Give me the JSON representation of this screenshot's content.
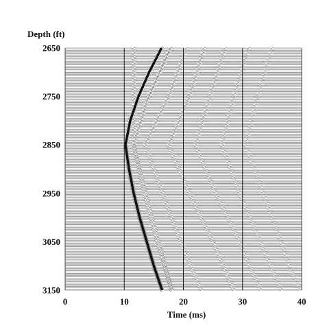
{
  "chart_data": {
    "type": "seismic-wiggle",
    "xlabel": "Time (ms)",
    "ylabel": "Depth (ft)",
    "xlim": [
      0,
      40
    ],
    "ylim": [
      2650,
      3150
    ],
    "y_inverted": true,
    "xticks": [
      0,
      10,
      20,
      30,
      40
    ],
    "xtick_labels": [
      "0",
      "10",
      "20",
      "30",
      "40"
    ],
    "yticks": [
      2650,
      2750,
      2850,
      2950,
      3050,
      3150
    ],
    "ytick_labels": [
      "2650",
      "2750",
      "2850",
      "2950",
      "3050",
      "3150"
    ],
    "vertical_grid": [
      10,
      20,
      30
    ],
    "trace_spacing_ft": 2.5,
    "colors": {
      "background": "#ffffff",
      "trace": "#111111",
      "grid": "#222222"
    },
    "events": [
      {
        "kind": "direct",
        "strength": 1.0,
        "points": [
          [
            2650,
            16.3
          ],
          [
            2700,
            14.2
          ],
          [
            2750,
            12.4
          ],
          [
            2800,
            11.0
          ],
          [
            2850,
            10.2
          ],
          [
            2900,
            10.8
          ],
          [
            2950,
            11.6
          ],
          [
            3000,
            12.6
          ],
          [
            3050,
            13.8
          ],
          [
            3100,
            15.0
          ],
          [
            3150,
            16.4
          ]
        ]
      },
      {
        "kind": "reflection",
        "strength": 0.5,
        "points": [
          [
            2650,
            17.8
          ],
          [
            2760,
            13.8
          ],
          [
            2850,
            11.6
          ],
          [
            2950,
            13.4
          ],
          [
            3050,
            15.6
          ],
          [
            3150,
            18.0
          ]
        ]
      },
      {
        "kind": "reflection",
        "strength": 0.45,
        "points": [
          [
            2850,
            11.6
          ],
          [
            2950,
            13.6
          ],
          [
            3050,
            15.8
          ],
          [
            3150,
            18.0
          ]
        ]
      },
      {
        "kind": "reflection",
        "strength": 0.3,
        "points": [
          [
            2650,
            20.5
          ],
          [
            2750,
            17.5
          ],
          [
            2850,
            13.5
          ],
          [
            2950,
            16.5
          ],
          [
            3050,
            19.5
          ],
          [
            3150,
            23.0
          ]
        ]
      },
      {
        "kind": "reflection",
        "strength": 0.3,
        "points": [
          [
            2650,
            23.5
          ],
          [
            2750,
            21.0
          ],
          [
            2850,
            17.5
          ],
          [
            2950,
            21.0
          ],
          [
            3050,
            25.0
          ],
          [
            3150,
            28.5
          ]
        ]
      },
      {
        "kind": "reflection",
        "strength": 0.25,
        "points": [
          [
            2650,
            27.0
          ],
          [
            2750,
            24.5
          ],
          [
            2850,
            22.0
          ],
          [
            2950,
            25.5
          ],
          [
            3050,
            29.5
          ],
          [
            3150,
            33.0
          ]
        ]
      },
      {
        "kind": "reflection",
        "strength": 0.22,
        "points": [
          [
            2650,
            31.0
          ],
          [
            2750,
            28.5
          ],
          [
            2850,
            26.5
          ],
          [
            2950,
            29.5
          ],
          [
            3050,
            33.0
          ],
          [
            3150,
            36.5
          ]
        ]
      },
      {
        "kind": "reflection",
        "strength": 0.18,
        "points": [
          [
            2650,
            35.0
          ],
          [
            2750,
            32.5
          ],
          [
            2850,
            30.5
          ],
          [
            2950,
            33.5
          ],
          [
            3050,
            36.5
          ],
          [
            3150,
            39.5
          ]
        ]
      }
    ]
  }
}
